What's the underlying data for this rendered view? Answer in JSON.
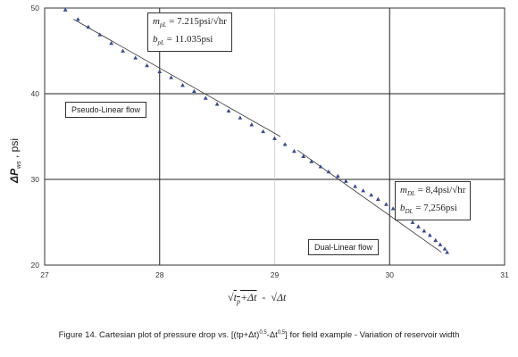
{
  "chart_data": {
    "type": "scatter",
    "xlim": [
      27,
      31
    ],
    "ylim": [
      20,
      50
    ],
    "xticks": [
      "27",
      "28",
      "29",
      "30",
      "31"
    ],
    "yticks": [
      "20",
      "30",
      "40",
      "50"
    ],
    "grid": "major gridlines at x = 28 and 30, y = 30 and 40",
    "marker": "triangle",
    "marker_color": "#3a4a8c",
    "trend_line_color": "#333333",
    "series": [
      {
        "points": [
          [
            27.18,
            49.8
          ],
          [
            27.29,
            48.7
          ],
          [
            27.38,
            47.8
          ],
          [
            27.48,
            46.9
          ],
          [
            27.58,
            45.9
          ],
          [
            27.68,
            45.0
          ],
          [
            27.79,
            44.2
          ],
          [
            27.89,
            43.3
          ],
          [
            28.0,
            42.6
          ],
          [
            28.1,
            41.9
          ],
          [
            28.2,
            41.0
          ],
          [
            28.3,
            40.3
          ],
          [
            28.4,
            39.5
          ],
          [
            28.5,
            38.8
          ],
          [
            28.6,
            38.0
          ],
          [
            28.7,
            37.2
          ],
          [
            28.8,
            36.4
          ],
          [
            28.9,
            35.6
          ],
          [
            29.0,
            34.8
          ],
          [
            29.09,
            34.1
          ],
          [
            29.17,
            33.3
          ],
          [
            29.25,
            32.7
          ],
          [
            29.32,
            32.1
          ],
          [
            29.4,
            31.5
          ],
          [
            29.47,
            30.9
          ],
          [
            29.55,
            30.4
          ],
          [
            29.62,
            29.8
          ],
          [
            29.7,
            29.2
          ],
          [
            29.77,
            28.7
          ],
          [
            29.84,
            28.2
          ],
          [
            29.9,
            27.7
          ],
          [
            29.97,
            27.1
          ],
          [
            30.03,
            26.6
          ],
          [
            30.09,
            26.1
          ],
          [
            30.15,
            25.5
          ],
          [
            30.2,
            25.0
          ],
          [
            30.25,
            24.5
          ],
          [
            30.3,
            24.0
          ],
          [
            30.35,
            23.5
          ],
          [
            30.4,
            22.9
          ],
          [
            30.44,
            22.4
          ],
          [
            30.48,
            21.9
          ],
          [
            30.5,
            21.5
          ]
        ]
      }
    ],
    "trend_lines": [
      {
        "x": [
          27.25,
          29.05
        ],
        "y": [
          48.7,
          35.0
        ]
      },
      {
        "x": [
          29.2,
          30.45
        ],
        "y": [
          33.4,
          21.5
        ]
      }
    ],
    "region_labels": {
      "pseudo_linear": "Pseudo-Linear flow",
      "dual_linear": "Dual-Linear flow"
    }
  },
  "annotations": {
    "pl_m_sym": "m",
    "pl_m_sub": "pL",
    "pl_m_val": " = 7.215psi/√hr",
    "pl_b_sym": "b",
    "pl_b_sub": "pL",
    "pl_b_val": " = 11.035psi",
    "dl_m_sym": "m",
    "dl_m_sub": "DL",
    "dl_m_val": " = 8,4psi/√hr",
    "dl_b_sym": "b",
    "dl_b_sub": "DL",
    "dl_b_val": " = 7,256psi"
  },
  "axes": {
    "ylabel_main": "ΔP",
    "ylabel_sub": "ws",
    "ylabel_unit": " , psi",
    "xlabel_part1": "√",
    "xlabel_tp": "t",
    "xlabel_tp_sub": "p",
    "xlabel_part2": "+Δt",
    "xlabel_minus": "  -  ",
    "xlabel_part3": "√Δt"
  },
  "caption": {
    "text_before": "Figure 14. Cartesian plot of pressure drop vs. [(tp+Δt)",
    "sup1": "0,5",
    "text_mid": "-Δt",
    "sup2": "0,5",
    "text_after": "] for field example - Variation of reservoir width"
  }
}
